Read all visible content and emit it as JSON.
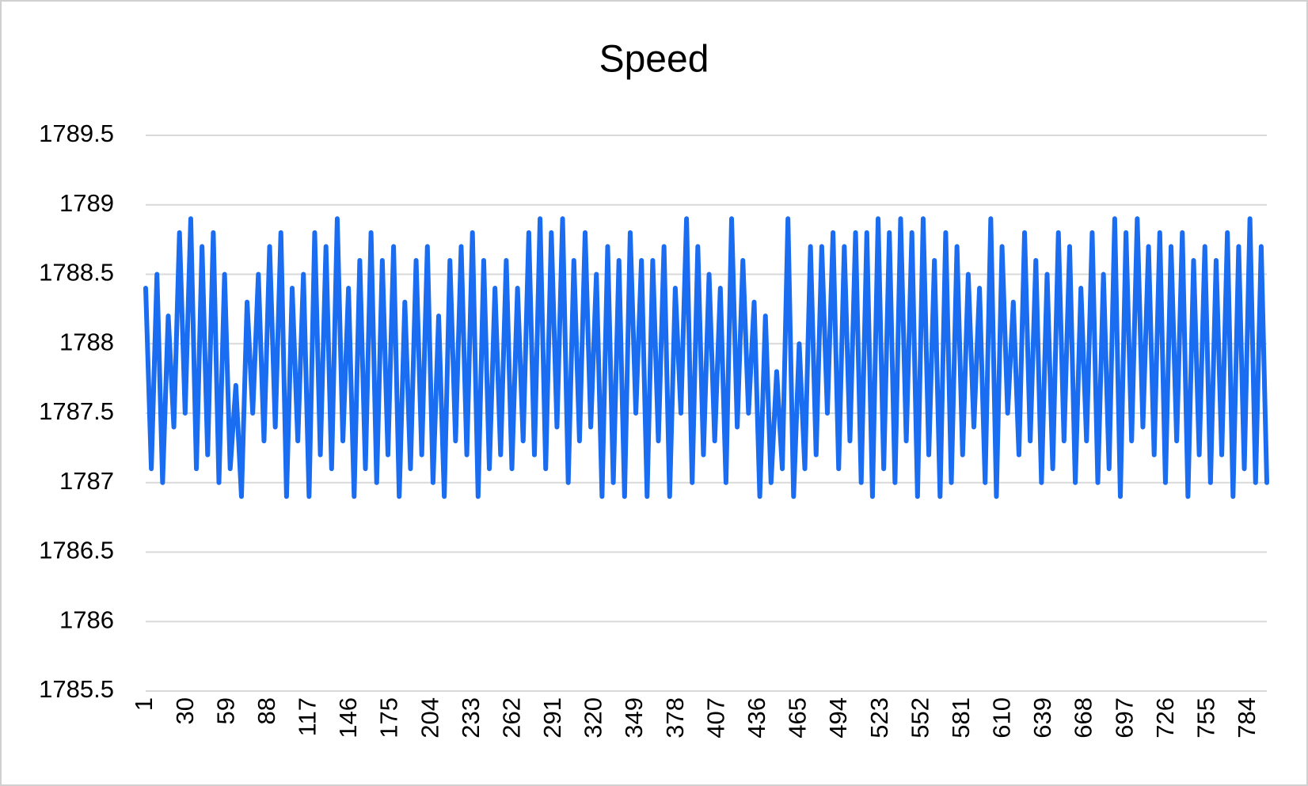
{
  "chart_data": {
    "type": "line",
    "title": "Speed",
    "color": "#1a6cf0",
    "grid": true,
    "xlim": [
      1,
      797
    ],
    "xticks": [
      1,
      30,
      59,
      88,
      117,
      146,
      175,
      204,
      233,
      262,
      291,
      320,
      349,
      378,
      407,
      436,
      465,
      494,
      523,
      552,
      581,
      610,
      639,
      668,
      697,
      726,
      755,
      784
    ],
    "ylim": [
      1785.5,
      1789.5
    ],
    "yticks": [
      1789.5,
      1789,
      1788.5,
      1788,
      1787.5,
      1787,
      1786.5,
      1786,
      1785.5
    ],
    "x": [
      1,
      5,
      9,
      13,
      17,
      21,
      25,
      29,
      33,
      37,
      41,
      45,
      49,
      53,
      57,
      61,
      65,
      69,
      73,
      77,
      81,
      85,
      89,
      93,
      97,
      101,
      105,
      109,
      113,
      117,
      121,
      125,
      129,
      133,
      137,
      141,
      145,
      149,
      153,
      157,
      161,
      165,
      169,
      173,
      177,
      181,
      185,
      189,
      193,
      197,
      201,
      205,
      209,
      213,
      217,
      221,
      225,
      229,
      233,
      237,
      241,
      245,
      249,
      253,
      257,
      261,
      265,
      269,
      273,
      277,
      281,
      285,
      289,
      293,
      297,
      301,
      305,
      309,
      313,
      317,
      321,
      325,
      329,
      333,
      337,
      341,
      345,
      349,
      353,
      357,
      361,
      365,
      369,
      373,
      377,
      381,
      385,
      389,
      393,
      397,
      401,
      405,
      409,
      413,
      417,
      421,
      425,
      429,
      433,
      437,
      441,
      445,
      449,
      453,
      457,
      461,
      465,
      469,
      473,
      477,
      481,
      485,
      489,
      493,
      497,
      501,
      505,
      509,
      513,
      517,
      521,
      525,
      529,
      533,
      537,
      541,
      545,
      549,
      553,
      557,
      561,
      565,
      569,
      573,
      577,
      581,
      585,
      589,
      593,
      597,
      601,
      605,
      609,
      613,
      617,
      621,
      625,
      629,
      633,
      637,
      641,
      645,
      649,
      653,
      657,
      661,
      665,
      669,
      673,
      677,
      681,
      685,
      689,
      693,
      697,
      701,
      705,
      709,
      713,
      717,
      721,
      725,
      729,
      733,
      737,
      741,
      745,
      749,
      753,
      757,
      761,
      765,
      769,
      773,
      777,
      781,
      785,
      789,
      793,
      797
    ],
    "values": [
      1788.4,
      1787.1,
      1788.5,
      1787.0,
      1788.2,
      1787.4,
      1788.8,
      1787.5,
      1788.9,
      1787.1,
      1788.7,
      1787.2,
      1788.8,
      1787.0,
      1788.5,
      1787.1,
      1787.7,
      1786.9,
      1788.3,
      1787.5,
      1788.5,
      1787.3,
      1788.7,
      1787.4,
      1788.8,
      1786.9,
      1788.4,
      1787.3,
      1788.5,
      1786.9,
      1788.8,
      1787.2,
      1788.7,
      1787.1,
      1788.9,
      1787.3,
      1788.4,
      1786.9,
      1788.6,
      1787.1,
      1788.8,
      1787.0,
      1788.6,
      1787.2,
      1788.7,
      1786.9,
      1788.3,
      1787.1,
      1788.6,
      1787.2,
      1788.7,
      1787.0,
      1788.2,
      1786.9,
      1788.6,
      1787.3,
      1788.7,
      1787.2,
      1788.8,
      1786.9,
      1788.6,
      1787.1,
      1788.4,
      1787.2,
      1788.6,
      1787.1,
      1788.4,
      1787.3,
      1788.8,
      1787.2,
      1788.9,
      1787.1,
      1788.8,
      1787.4,
      1788.9,
      1787.0,
      1788.6,
      1787.3,
      1788.8,
      1787.4,
      1788.5,
      1786.9,
      1788.7,
      1787.0,
      1788.6,
      1786.9,
      1788.8,
      1787.5,
      1788.6,
      1786.9,
      1788.6,
      1787.3,
      1788.7,
      1786.9,
      1788.4,
      1787.5,
      1788.9,
      1787.0,
      1788.7,
      1787.2,
      1788.5,
      1787.3,
      1788.4,
      1787.0,
      1788.9,
      1787.4,
      1788.6,
      1787.5,
      1788.3,
      1786.9,
      1788.2,
      1787.0,
      1787.8,
      1787.1,
      1788.9,
      1786.9,
      1788.0,
      1787.1,
      1788.7,
      1787.2,
      1788.7,
      1787.5,
      1788.8,
      1787.1,
      1788.7,
      1787.3,
      1788.8,
      1787.0,
      1788.8,
      1786.9,
      1788.9,
      1787.1,
      1788.8,
      1787.0,
      1788.9,
      1787.3,
      1788.8,
      1786.9,
      1788.9,
      1787.2,
      1788.6,
      1786.9,
      1788.8,
      1787.0,
      1788.7,
      1787.2,
      1788.5,
      1787.4,
      1788.4,
      1787.0,
      1788.9,
      1786.9,
      1788.7,
      1787.5,
      1788.3,
      1787.2,
      1788.8,
      1787.3,
      1788.6,
      1787.0,
      1788.5,
      1787.1,
      1788.8,
      1787.3,
      1788.7,
      1787.0,
      1788.4,
      1787.3,
      1788.8,
      1787.0,
      1788.5,
      1787.1,
      1788.9,
      1786.9,
      1788.8,
      1787.3,
      1788.9,
      1787.4,
      1788.7,
      1787.2,
      1788.8,
      1787.0,
      1788.7,
      1787.3,
      1788.8,
      1786.9,
      1788.6,
      1787.2,
      1788.7,
      1787.0,
      1788.6,
      1787.2,
      1788.8,
      1786.9,
      1788.7,
      1787.1,
      1788.9,
      1787.0,
      1788.7,
      1787.0
    ]
  }
}
